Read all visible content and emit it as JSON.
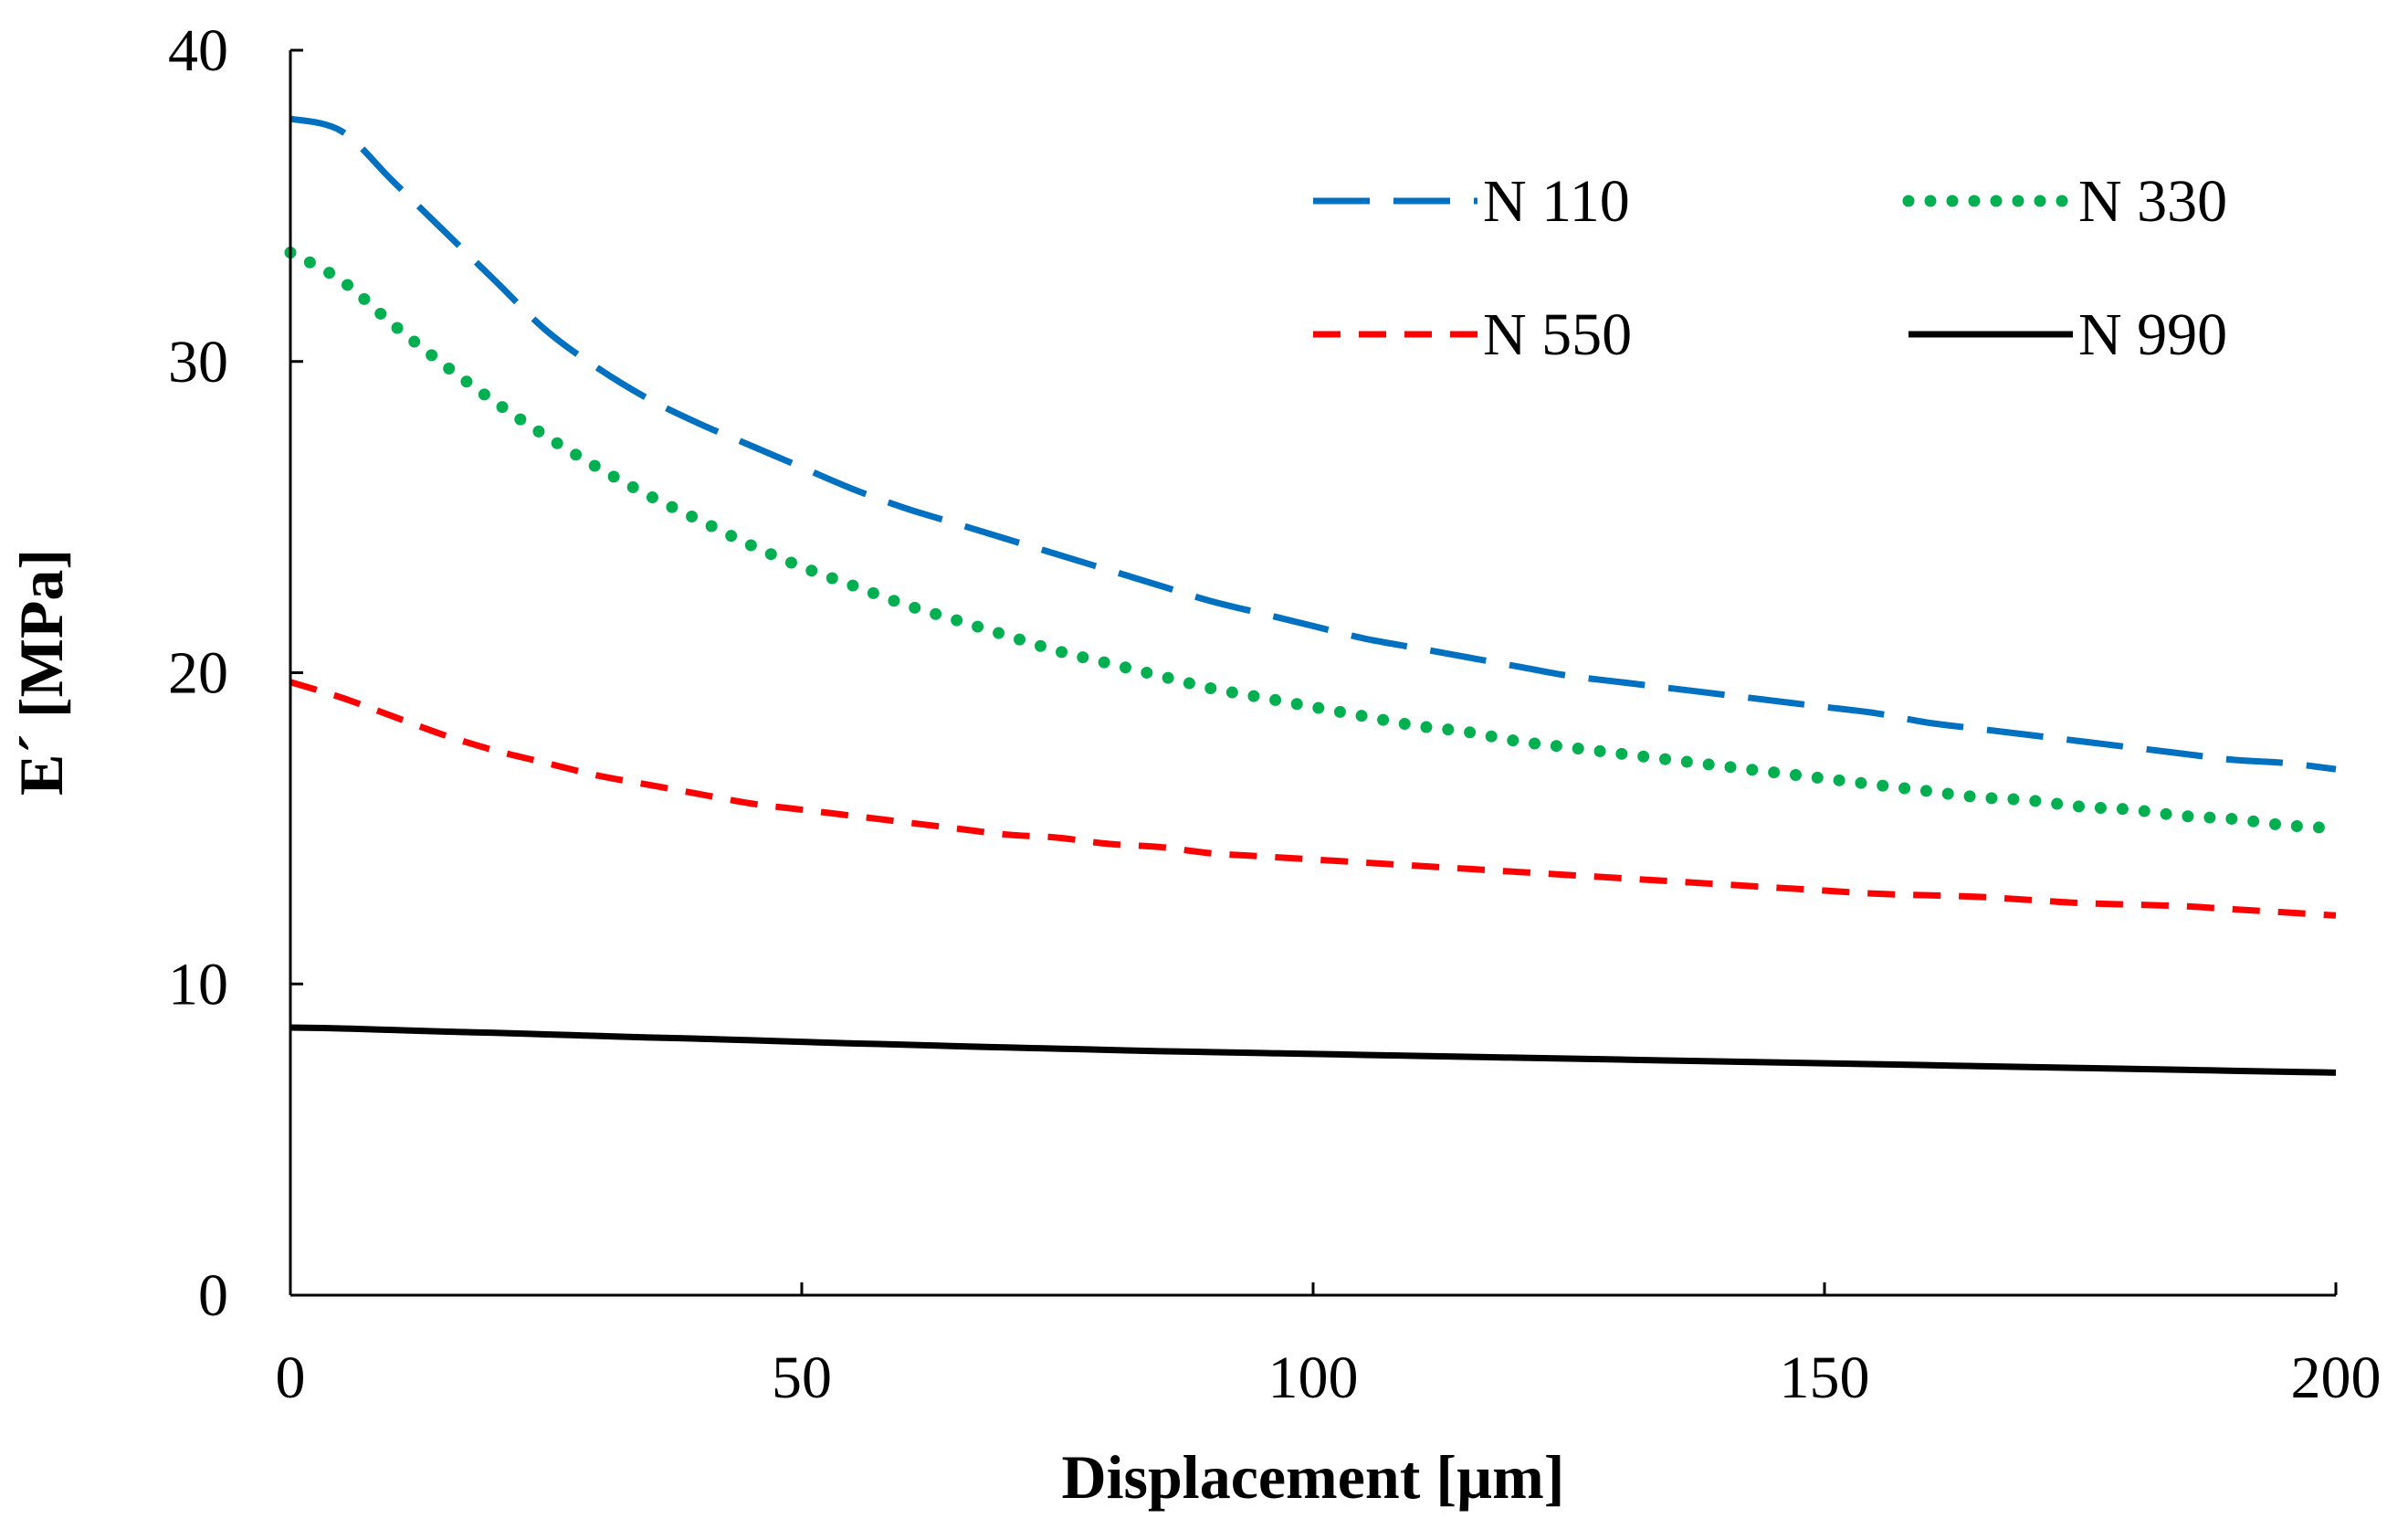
{
  "chart_data": {
    "type": "line",
    "title": "",
    "xlabel": "Displacement [µm]",
    "ylabel": "E´ [MPa]",
    "xlim": [
      0,
      200
    ],
    "ylim": [
      0,
      40
    ],
    "xticks": [
      "0",
      "50",
      "100",
      "150",
      "200"
    ],
    "yticks": [
      "0",
      "10",
      "20",
      "30",
      "40"
    ],
    "grid": false,
    "legend_position": "top-right",
    "x": [
      0,
      5,
      10,
      15,
      20,
      25,
      30,
      35,
      40,
      45,
      50,
      55,
      60,
      65,
      70,
      75,
      80,
      85,
      90,
      95,
      100,
      105,
      110,
      115,
      120,
      125,
      130,
      135,
      140,
      145,
      150,
      155,
      160,
      165,
      170,
      175,
      180,
      185,
      190,
      195,
      200
    ],
    "series": [
      {
        "name": "N 110",
        "color": "#0070C0",
        "style": "long-dash",
        "values": [
          37.8,
          37.4,
          35.8,
          34.2,
          32.6,
          31.0,
          29.8,
          28.8,
          28.0,
          27.3,
          26.6,
          25.9,
          25.3,
          24.8,
          24.3,
          23.8,
          23.3,
          22.8,
          22.3,
          21.9,
          21.5,
          21.1,
          20.8,
          20.5,
          20.2,
          19.9,
          19.7,
          19.5,
          19.3,
          19.1,
          18.9,
          18.7,
          18.4,
          18.2,
          18.0,
          17.8,
          17.6,
          17.4,
          17.2,
          17.1,
          16.9
        ]
      },
      {
        "name": "N 330",
        "color": "#00B050",
        "style": "dotted",
        "values": [
          33.5,
          32.6,
          31.2,
          29.9,
          28.7,
          27.6,
          26.6,
          25.7,
          24.9,
          24.1,
          23.4,
          22.8,
          22.2,
          21.7,
          21.2,
          20.7,
          20.3,
          19.9,
          19.5,
          19.2,
          18.9,
          18.6,
          18.3,
          18.1,
          17.8,
          17.6,
          17.4,
          17.2,
          17.0,
          16.8,
          16.6,
          16.4,
          16.2,
          16.0,
          15.9,
          15.7,
          15.6,
          15.4,
          15.3,
          15.1,
          15.0
        ]
      },
      {
        "name": "N 550",
        "color": "#FF0000",
        "style": "short-dash",
        "values": [
          19.7,
          19.2,
          18.6,
          18.0,
          17.5,
          17.1,
          16.7,
          16.4,
          16.1,
          15.8,
          15.6,
          15.4,
          15.2,
          15.0,
          14.8,
          14.7,
          14.5,
          14.4,
          14.2,
          14.1,
          14.0,
          13.9,
          13.8,
          13.7,
          13.6,
          13.5,
          13.4,
          13.3,
          13.2,
          13.1,
          13.0,
          12.9,
          12.85,
          12.8,
          12.7,
          12.6,
          12.55,
          12.5,
          12.4,
          12.3,
          12.2
        ]
      },
      {
        "name": "N 990",
        "color": "#000000",
        "style": "solid",
        "values": [
          8.6,
          8.57,
          8.52,
          8.47,
          8.43,
          8.38,
          8.33,
          8.28,
          8.24,
          8.19,
          8.14,
          8.09,
          8.05,
          8.0,
          7.96,
          7.92,
          7.88,
          7.84,
          7.81,
          7.78,
          7.75,
          7.72,
          7.69,
          7.66,
          7.63,
          7.6,
          7.57,
          7.54,
          7.51,
          7.48,
          7.45,
          7.42,
          7.39,
          7.36,
          7.33,
          7.3,
          7.27,
          7.24,
          7.21,
          7.18,
          7.15
        ]
      }
    ]
  }
}
